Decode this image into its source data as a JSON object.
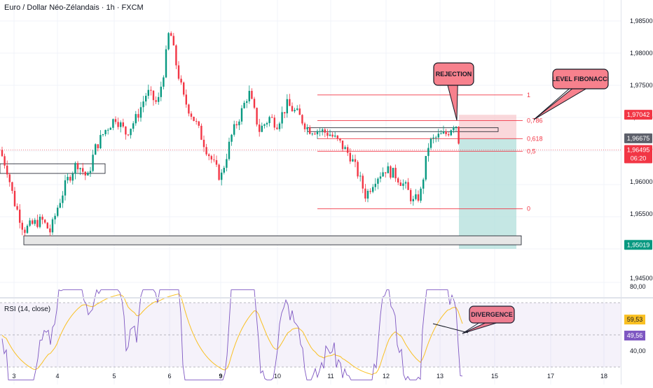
{
  "header": {
    "title": "Euro / Dollar Néo-Zélandais · 1h · FXCM"
  },
  "rsi": {
    "title": "RSI (14, close)",
    "value_label": "59,53",
    "ma_label": "49,56",
    "axis_labels": [
      "80,00",
      "40,00"
    ],
    "upper": 70,
    "lower": 30
  },
  "colors": {
    "up": "#089981",
    "down": "#f23645",
    "accent_red": "#f23645",
    "callout_fill": "#f7818d",
    "rsi_line": "#7e57c2",
    "rsi_ma": "#f9c023",
    "green_zone": "#b2dfdb",
    "red_zone": "#f8c7cc"
  },
  "annotations": {
    "rejection": "REJECTION",
    "level_fibonacci": "LEVEL FIBONACCI",
    "divergence": "DIVERGENCE"
  },
  "price_badges": [
    {
      "label": "1,97042",
      "style": "red"
    },
    {
      "label": "1,96675",
      "style": "dark"
    },
    {
      "label": "1,96495",
      "style": "red",
      "sub": "06:20"
    },
    {
      "label": "1,95019",
      "style": "green"
    }
  ],
  "chart_data": {
    "type": "candlestick",
    "title": "Euro / Dollar Néo-Zélandais · 1h · FXCM",
    "y_ticks": [
      1.985,
      1.98,
      1.975,
      1.97,
      1.965,
      1.96,
      1.955,
      1.945
    ],
    "y_tick_labels": [
      "1,98500",
      "1,98000",
      "1,97500",
      "1,97000",
      "1,96500",
      "1,96000",
      "1,95500",
      "1,94500"
    ],
    "ylim": [
      1.9418,
      1.9868
    ],
    "x_ticks": [
      "3",
      "4",
      "5",
      "6",
      "9",
      "10",
      "11",
      "12",
      "13",
      "15",
      "17",
      "18"
    ],
    "x_ticks_bold": [
      "9"
    ],
    "fibonacci": [
      {
        "level": "1",
        "price": 1.9735
      },
      {
        "level": "0,786",
        "price": 1.9695
      },
      {
        "level": "0,618",
        "price": 1.9667
      },
      {
        "level": "0,5",
        "price": 1.96475
      },
      {
        "level": "0",
        "price": 1.9558
      }
    ],
    "zones": [
      {
        "name": "support",
        "from": 1.9502,
        "to": 1.9516
      },
      {
        "name": "range-left",
        "from": 1.9613,
        "to": 1.9628
      },
      {
        "name": "resistance",
        "from": 1.9678,
        "to": 1.9684
      }
    ],
    "position": {
      "entry": 1.96675,
      "stop": 1.97042,
      "target": 1.95019
    },
    "rsi_ylim": [
      20,
      85
    ]
  }
}
